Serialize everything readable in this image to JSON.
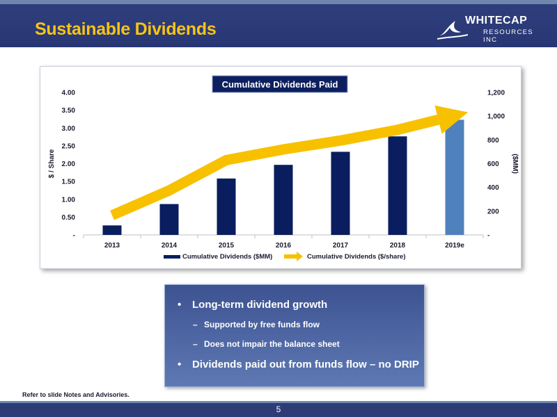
{
  "slide": {
    "title": "Sustainable Dividends",
    "page_number": "5",
    "footnote": "Refer to slide Notes and Advisories."
  },
  "logo": {
    "name": "WHITECAP",
    "subtitle": "RESOURCES INC"
  },
  "colors": {
    "header_bg": "#2b3a78",
    "title": "#f6c417",
    "bar": "#0a1d5e",
    "bar_estimate": "#4f81bd",
    "arrow": "#f7c100"
  },
  "chart_data": {
    "type": "bar",
    "title": "Cumulative Dividends Paid",
    "categories": [
      "2013",
      "2014",
      "2015",
      "2016",
      "2017",
      "2018",
      "2019e"
    ],
    "series": [
      {
        "name": "Cumulative Dividends ($MM)",
        "type": "bar",
        "axis": "right",
        "values": [
          80,
          260,
          475,
          590,
          700,
          830,
          970
        ]
      },
      {
        "name": "Cumulative Dividends ($/share)",
        "type": "line",
        "axis": "left",
        "values": [
          0.55,
          1.25,
          2.1,
          2.4,
          2.65,
          2.95,
          3.35
        ]
      }
    ],
    "ylabel": "$ / Share",
    "y2label": "($MM)",
    "ylim": [
      0,
      4
    ],
    "y2lim": [
      0,
      1200
    ],
    "yticks": [
      "-",
      "0.50",
      "1.00",
      "1.50",
      "2.00",
      "2.50",
      "3.00",
      "3.50",
      "4.00"
    ],
    "y2ticks": [
      "-",
      "200",
      "400",
      "600",
      "800",
      "1,000",
      "1,200"
    ],
    "legend_position": "bottom",
    "grid": false
  },
  "callout": {
    "bullets": [
      {
        "text": "Long-term dividend growth",
        "subs": [
          "Supported by free funds flow",
          "Does not impair the balance sheet"
        ]
      },
      {
        "text": "Dividends paid out from funds flow – no DRIP",
        "subs": []
      }
    ],
    "bullet_char": "•",
    "dash_char": "–"
  }
}
